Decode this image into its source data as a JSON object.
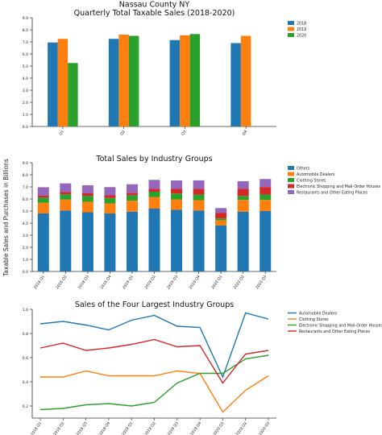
{
  "figure": {
    "ylabel": "Taxable Sales and Purchases in Billions"
  },
  "chart_data": [
    {
      "type": "bar",
      "title": "Nassau County NY",
      "subtitle": "Quarterly Total Taxable Sales (2018-2020)",
      "categories": [
        "Q1",
        "Q2",
        "Q3",
        "Q4"
      ],
      "ylim": [
        0,
        9
      ],
      "yticks": [
        "0.0",
        "1.0",
        "2.0",
        "3.0",
        "4.0",
        "5.0",
        "6.0",
        "7.0",
        "8.0",
        "9.0"
      ],
      "legend": "right",
      "series": [
        {
          "name": "2018",
          "color": "#1f77b4",
          "values": [
            6.95,
            7.25,
            7.15,
            6.9
          ]
        },
        {
          "name": "2019",
          "color": "#ff7f0e",
          "values": [
            7.25,
            7.6,
            7.55,
            7.5
          ]
        },
        {
          "name": "2020",
          "color": "#2ca02c",
          "values": [
            5.25,
            7.5,
            7.65,
            null
          ]
        }
      ]
    },
    {
      "type": "bar",
      "stacked": true,
      "title": "Total Sales by Industry Groups",
      "categories": [
        "2018 Q1",
        "2018 Q2",
        "2018 Q3",
        "2018 Q4",
        "2019 Q1",
        "2019 Q2",
        "2019 Q3",
        "2019 Q4",
        "2020 Q1",
        "2020 Q2",
        "2020 Q3"
      ],
      "ylim": [
        0,
        9
      ],
      "yticks": [
        "0.0",
        "1.0",
        "2.0",
        "3.0",
        "4.0",
        "5.0",
        "6.0",
        "7.0",
        "8.0",
        "9.0"
      ],
      "legend": "right",
      "series": [
        {
          "name": "Others",
          "color": "#1f77b4",
          "values": [
            4.8,
            5.05,
            4.9,
            4.8,
            4.95,
            5.2,
            5.1,
            5.05,
            3.8,
            4.95,
            5.0
          ]
        },
        {
          "name": "Automobile Dealers",
          "color": "#ff7f0e",
          "values": [
            0.88,
            0.9,
            0.87,
            0.83,
            0.91,
            0.95,
            0.86,
            0.85,
            0.44,
            0.97,
            0.92
          ]
        },
        {
          "name": "Clothing Stores",
          "color": "#2ca02c",
          "values": [
            0.44,
            0.44,
            0.49,
            0.45,
            0.45,
            0.45,
            0.49,
            0.47,
            0.15,
            0.33,
            0.45
          ]
        },
        {
          "name": "Electronic Shopping and Mail-Order Houses",
          "color": "#d62728",
          "values": [
            0.17,
            0.18,
            0.21,
            0.22,
            0.2,
            0.23,
            0.39,
            0.47,
            0.47,
            0.59,
            0.62
          ]
        },
        {
          "name": "Restaurants and Other Eating Places",
          "color": "#9467bd",
          "values": [
            0.68,
            0.72,
            0.66,
            0.68,
            0.71,
            0.75,
            0.69,
            0.7,
            0.39,
            0.63,
            0.66
          ]
        }
      ]
    },
    {
      "type": "line",
      "title": "Sales of the Four Largest Industry Groups",
      "categories": [
        "2018 Q1",
        "2018 Q2",
        "2018 Q3",
        "2018 Q4",
        "2019 Q1",
        "2019 Q2",
        "2019 Q3",
        "2019 Q4",
        "2020 Q1",
        "2020 Q2",
        "2020 Q3"
      ],
      "ylim": [
        0.1,
        1.0
      ],
      "yticks": [
        "0.2",
        "0.4",
        "0.6",
        "0.8",
        "1.0"
      ],
      "ytick_values": [
        0.2,
        0.4,
        0.6,
        0.8,
        1.0
      ],
      "legend": "right",
      "series": [
        {
          "name": "Automobile Dealers",
          "color": "#1f77b4",
          "values": [
            0.88,
            0.9,
            0.87,
            0.83,
            0.91,
            0.95,
            0.86,
            0.85,
            0.44,
            0.97,
            0.92
          ]
        },
        {
          "name": "Clothing Stores",
          "color": "#ff7f0e",
          "values": [
            0.44,
            0.44,
            0.49,
            0.45,
            0.45,
            0.45,
            0.49,
            0.47,
            0.15,
            0.33,
            0.45
          ]
        },
        {
          "name": "Electronic Shopping and Mail-Order Houses",
          "color": "#2ca02c",
          "values": [
            0.17,
            0.18,
            0.21,
            0.22,
            0.2,
            0.23,
            0.39,
            0.47,
            0.47,
            0.59,
            0.62
          ]
        },
        {
          "name": "Restaurants and Other Eating Places",
          "color": "#d62728",
          "values": [
            0.68,
            0.72,
            0.66,
            0.68,
            0.71,
            0.75,
            0.69,
            0.7,
            0.39,
            0.63,
            0.66
          ]
        }
      ]
    }
  ]
}
